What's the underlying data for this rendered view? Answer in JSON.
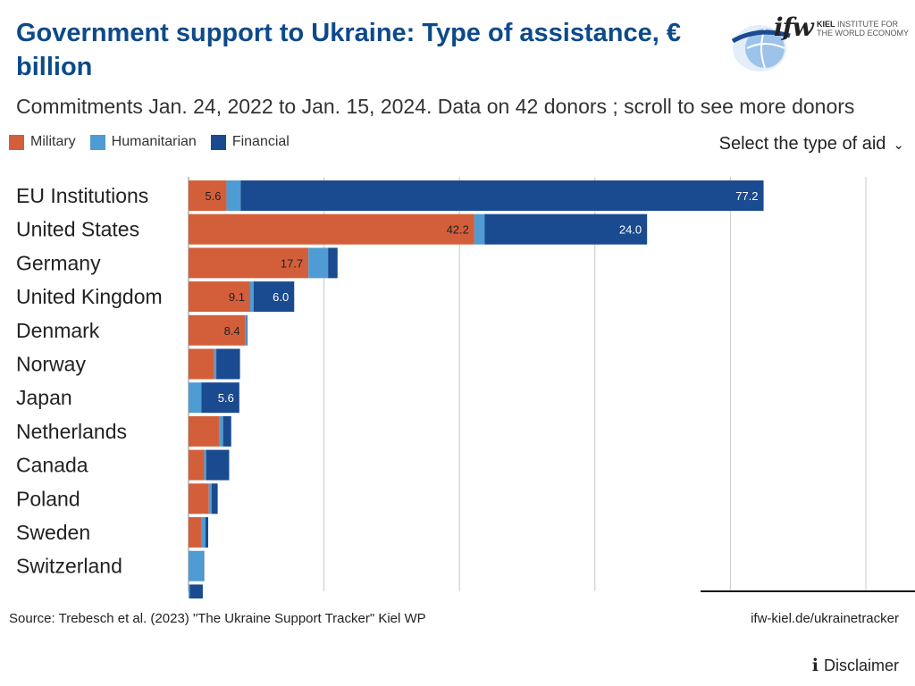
{
  "header": {
    "title": "Government support to Ukraine:  Type of assistance, € billion",
    "subtitle": "Commitments Jan. 24, 2022 to Jan. 15, 2024. Data on 42 donors ; scroll to see more donors"
  },
  "logo": {
    "mark": "ifw",
    "line1_bold": "KIEL",
    "line1_rest": " INSTITUTE FOR",
    "line2": "THE WORLD ECONOMY"
  },
  "controls": {
    "select_label": "Select the type of aid"
  },
  "footer": {
    "source": "Source: Trebesch et al. (2023) \"The Ukraine Support Tracker\" Kiel WP",
    "link": "ifw-kiel.de/ukrainetracker",
    "disclaimer": "Disclaimer"
  },
  "colors": {
    "military": "#d35f3a",
    "humanitarian": "#4f9bd3",
    "financial": "#1a4a8f",
    "title": "#0d4a8a",
    "grid": "#c8c8c8"
  },
  "chart_data": {
    "type": "bar",
    "orientation": "horizontal",
    "stacked": true,
    "title": "Government support to Ukraine:  Type of assistance, € billion",
    "xlabel": "",
    "ylabel": "",
    "xlim": [
      0,
      100
    ],
    "grid": true,
    "legend": "top-left",
    "categories": [
      "EU Institutions",
      "United States",
      "Germany",
      "United Kingdom",
      "Denmark",
      "Norway",
      "Japan",
      "Netherlands",
      "Canada",
      "Poland",
      "Sweden",
      "Switzerland",
      ""
    ],
    "series": [
      {
        "name": "Military",
        "values": [
          5.6,
          42.2,
          17.7,
          9.1,
          8.4,
          3.8,
          0,
          4.5,
          2.3,
          3.0,
          1.9,
          0,
          0
        ],
        "labels": [
          "5.6",
          "42.2",
          "17.7",
          "9.1",
          "8.4",
          "",
          "",
          "",
          "",
          "",
          "",
          "",
          ""
        ]
      },
      {
        "name": "Humanitarian",
        "values": [
          2.1,
          1.5,
          2.9,
          0.5,
          0.2,
          0.3,
          1.9,
          0.6,
          0.3,
          0.4,
          0.6,
          2.2,
          0.2
        ]
      },
      {
        "name": "Financial",
        "values": [
          77.2,
          24.0,
          1.4,
          6.0,
          0.1,
          3.5,
          5.6,
          1.2,
          3.4,
          0.9,
          0.4,
          0.1,
          1.9
        ],
        "labels": [
          "77.2",
          "24.0",
          "",
          "6.0",
          "",
          "",
          "5.6",
          "",
          "",
          "",
          "",
          "",
          ""
        ]
      }
    ]
  }
}
